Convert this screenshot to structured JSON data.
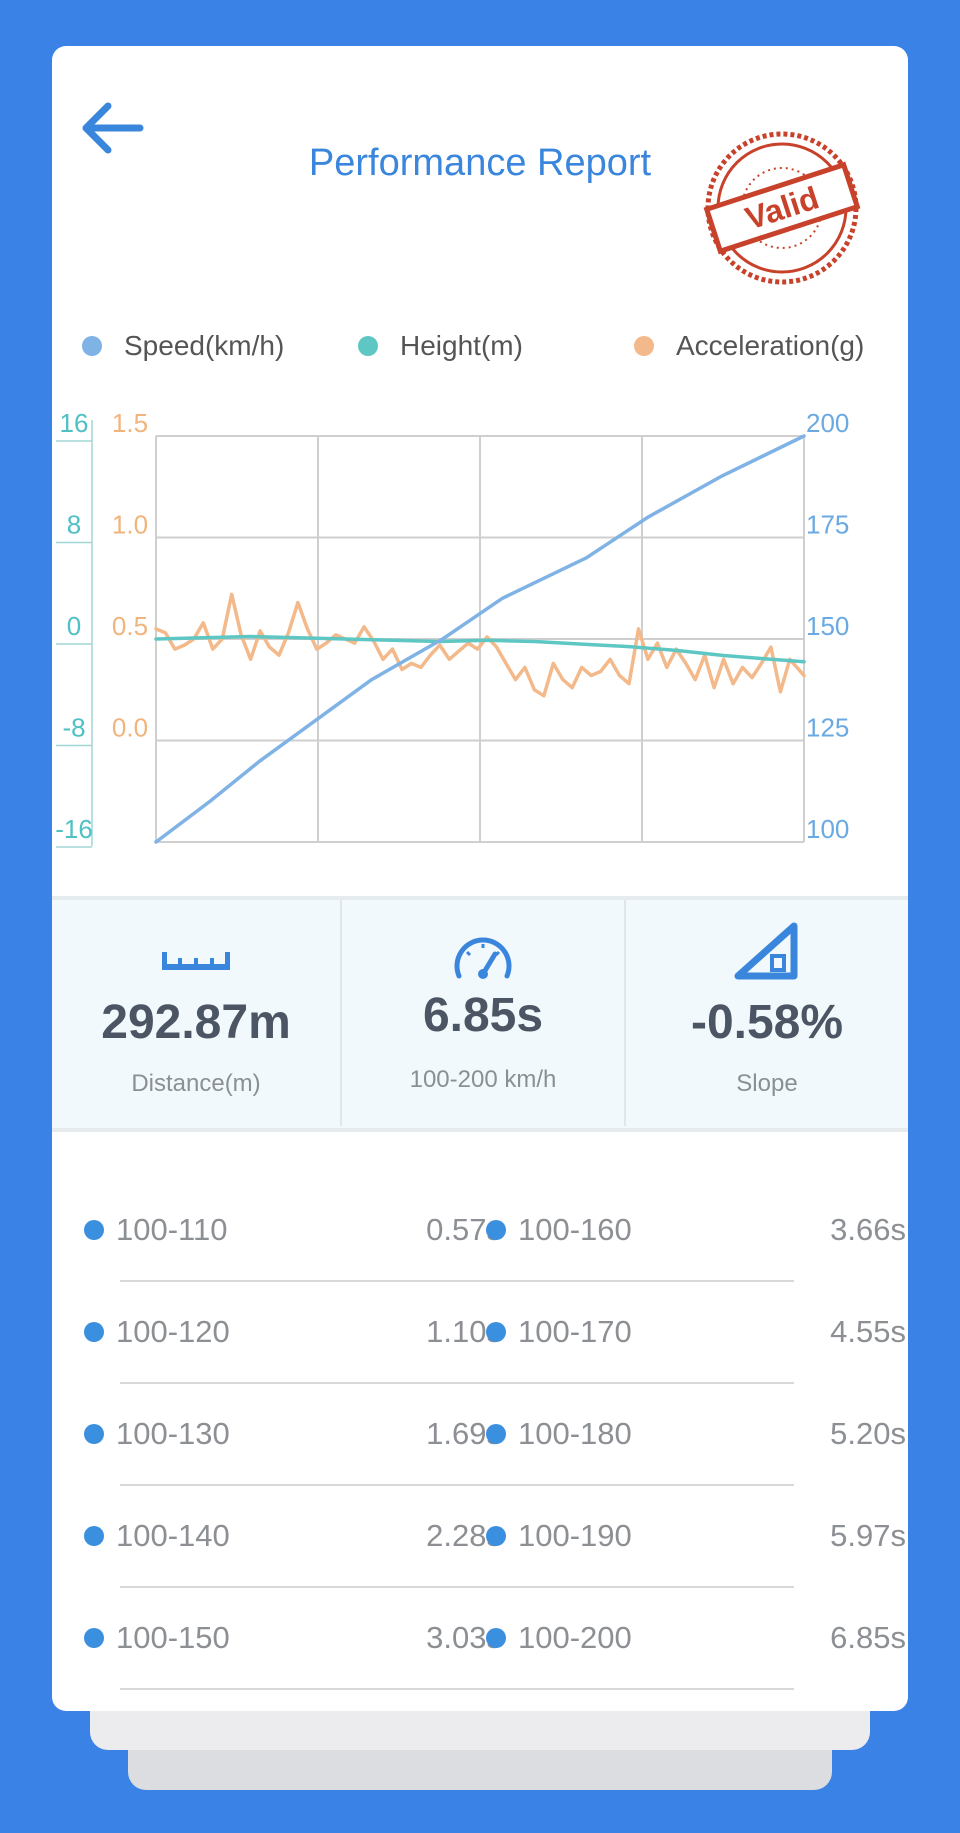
{
  "header": {
    "back_icon": "arrow-left-icon",
    "title": "Performance Report",
    "stamp_text": "Valid"
  },
  "colors": {
    "background": "#3b82e6",
    "speed": "#7fb2e5",
    "height": "#5ec7c4",
    "acceleration": "#f3b98a",
    "accent": "#3b8fdf",
    "stamp": "#c8422b"
  },
  "chart_data": {
    "type": "line",
    "legend": [
      "Speed(km/h)",
      "Height(m)",
      "Acceleration(g)"
    ],
    "grid": true,
    "axes": {
      "height_left": {
        "ticks": [
          "16",
          "8",
          "0",
          "-8",
          "-16"
        ],
        "range": [
          -16,
          16
        ]
      },
      "acceleration_left": {
        "ticks": [
          "1.5",
          "1.0",
          "0.5",
          "0.0"
        ],
        "range": [
          -0.5,
          1.5
        ]
      },
      "speed_right": {
        "ticks": [
          "200",
          "175",
          "150",
          "125",
          "100"
        ],
        "range": [
          100,
          200
        ]
      }
    },
    "x_range": [
      0,
      6.85
    ],
    "series": [
      {
        "name": "Speed(km/h)",
        "axis": "speed_right",
        "x": [
          0,
          0.57,
          1.1,
          1.69,
          2.28,
          3.03,
          3.66,
          4.55,
          5.2,
          5.97,
          6.85
        ],
        "values": [
          100,
          110,
          120,
          130,
          140,
          150,
          160,
          170,
          180,
          190,
          200
        ]
      },
      {
        "name": "Height(m)",
        "axis": "height_left",
        "x": [
          0,
          0.5,
          1,
          1.5,
          2,
          2.5,
          3,
          3.5,
          4,
          4.5,
          5,
          5.5,
          6,
          6.5,
          6.85
        ],
        "values": [
          0,
          0.1,
          0.2,
          0.1,
          0.0,
          -0.1,
          -0.2,
          -0.1,
          -0.2,
          -0.4,
          -0.6,
          -0.9,
          -1.3,
          -1.6,
          -1.8
        ]
      },
      {
        "name": "Acceleration(g)",
        "axis": "acceleration_left",
        "x": [
          0,
          0.1,
          0.2,
          0.3,
          0.4,
          0.5,
          0.6,
          0.7,
          0.8,
          0.9,
          1.0,
          1.1,
          1.2,
          1.3,
          1.4,
          1.5,
          1.6,
          1.7,
          1.8,
          1.9,
          2.0,
          2.1,
          2.2,
          2.3,
          2.4,
          2.5,
          2.6,
          2.7,
          2.8,
          2.9,
          3.0,
          3.1,
          3.2,
          3.3,
          3.4,
          3.5,
          3.6,
          3.7,
          3.8,
          3.9,
          4.0,
          4.1,
          4.2,
          4.3,
          4.4,
          4.5,
          4.6,
          4.7,
          4.8,
          4.9,
          5.0,
          5.1,
          5.2,
          5.3,
          5.4,
          5.5,
          5.6,
          5.7,
          5.8,
          5.9,
          6.0,
          6.1,
          6.2,
          6.3,
          6.4,
          6.5,
          6.6,
          6.7,
          6.85
        ],
        "values": [
          0.55,
          0.53,
          0.45,
          0.47,
          0.5,
          0.58,
          0.45,
          0.5,
          0.72,
          0.52,
          0.4,
          0.54,
          0.46,
          0.42,
          0.53,
          0.68,
          0.55,
          0.45,
          0.48,
          0.52,
          0.5,
          0.48,
          0.56,
          0.49,
          0.4,
          0.45,
          0.35,
          0.38,
          0.36,
          0.42,
          0.47,
          0.4,
          0.44,
          0.48,
          0.45,
          0.51,
          0.46,
          0.38,
          0.3,
          0.36,
          0.25,
          0.22,
          0.38,
          0.3,
          0.26,
          0.36,
          0.32,
          0.34,
          0.4,
          0.32,
          0.28,
          0.55,
          0.4,
          0.48,
          0.36,
          0.45,
          0.38,
          0.3,
          0.42,
          0.26,
          0.4,
          0.28,
          0.36,
          0.31,
          0.38,
          0.46,
          0.24,
          0.4,
          0.32
        ]
      }
    ]
  },
  "stats": [
    {
      "icon": "ruler-icon",
      "value": "292.87m",
      "label": "Distance(m)"
    },
    {
      "icon": "speedometer-icon",
      "value": "6.85s",
      "label": "100-200 km/h"
    },
    {
      "icon": "slope-icon",
      "value": "-0.58%",
      "label": "Slope"
    }
  ],
  "splits": [
    {
      "left_label": "100-110",
      "left_time": "0.57s",
      "right_label": "100-160",
      "right_time": "3.66s"
    },
    {
      "left_label": "100-120",
      "left_time": "1.10s",
      "right_label": "100-170",
      "right_time": "4.55s"
    },
    {
      "left_label": "100-130",
      "left_time": "1.69s",
      "right_label": "100-180",
      "right_time": "5.20s"
    },
    {
      "left_label": "100-140",
      "left_time": "2.28s",
      "right_label": "100-190",
      "right_time": "5.97s"
    },
    {
      "left_label": "100-150",
      "left_time": "3.03s",
      "right_label": "100-200",
      "right_time": "6.85s"
    }
  ]
}
